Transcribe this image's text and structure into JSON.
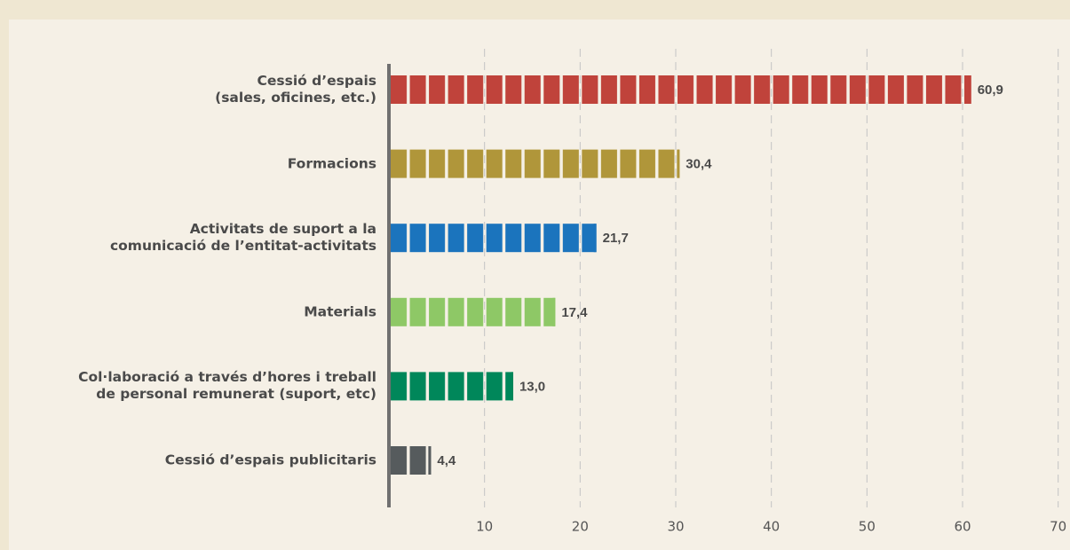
{
  "chart_data": {
    "type": "bar",
    "orientation": "horizontal",
    "categories": [
      "Cessió d’espais\n(sales, oficines, etc.)",
      "Formacions",
      "Activitats de suport a la\ncomunicació de l’entitat-activitats",
      "Materials",
      "Col·laboració a través d’hores i treball\nde personal remunerat (suport, etc)",
      "Cessió d’espais publicitaris"
    ],
    "values": [
      60.9,
      30.4,
      21.7,
      17.4,
      13.0,
      4.4
    ],
    "value_labels": [
      "60,9",
      "30,4",
      "21,7",
      "17,4",
      "13,0",
      "4,4"
    ],
    "colors": [
      "#c0433b",
      "#b0963a",
      "#1b74bd",
      "#8ec866",
      "#00875a",
      "#565b5d"
    ],
    "xlim": [
      0,
      70
    ],
    "xticks": [
      10,
      20,
      30,
      40,
      50,
      60,
      70
    ],
    "grid": true
  }
}
